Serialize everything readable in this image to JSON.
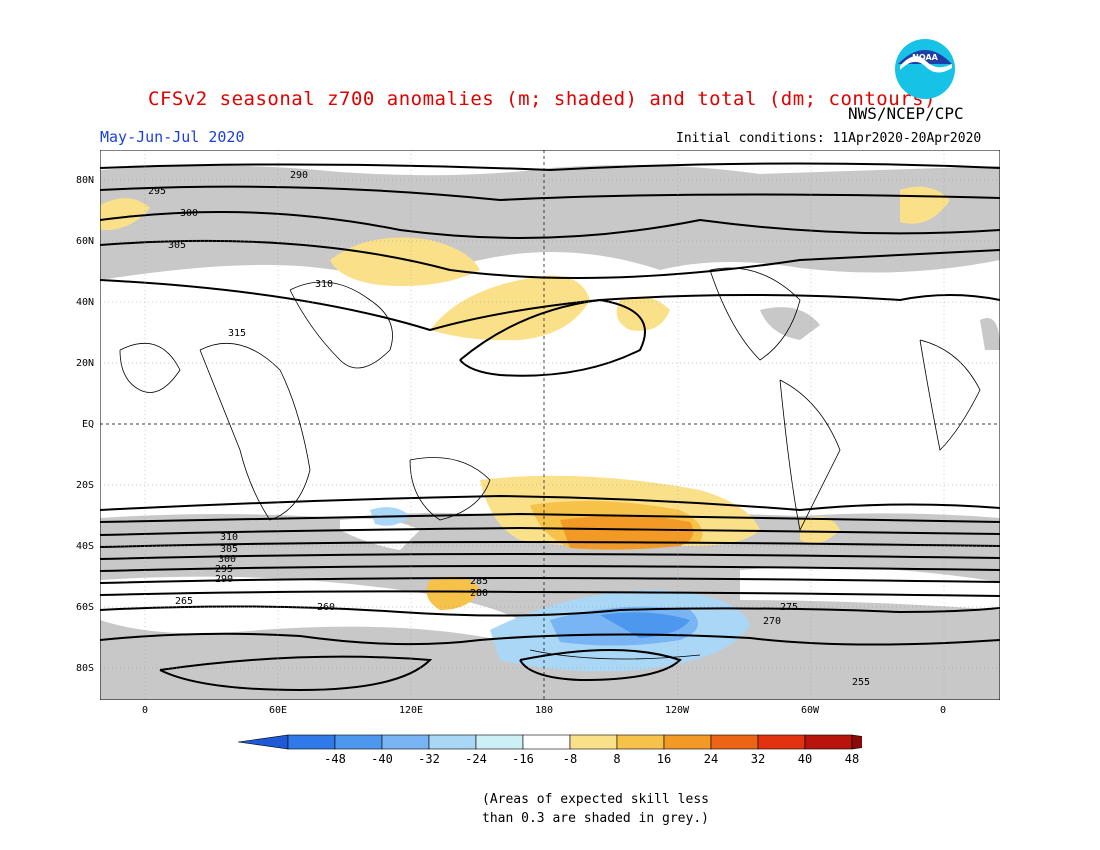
{
  "title": "CFSv2 seasonal z700 anomalies (m; shaded) and total (dm; contours)",
  "agency": "NWS/NCEP/CPC",
  "period": "May-Jun-Jul 2020",
  "initial_conditions": "Initial conditions: 11Apr2020-20Apr2020",
  "logo_text": "NOAA",
  "note_line1": "(Areas of expected skill less",
  "note_line2": "than 0.3 are shaded in grey.)",
  "map": {
    "lat_labels": [
      "80N",
      "60N",
      "40N",
      "20N",
      "EQ",
      "20S",
      "40S",
      "60S",
      "80S"
    ],
    "lon_labels": [
      "0",
      "60E",
      "120E",
      "180",
      "120W",
      "60W",
      "0"
    ],
    "contour_labels": [
      "290",
      "295",
      "300",
      "305",
      "310",
      "315",
      "310",
      "305",
      "300",
      "295",
      "290",
      "285",
      "280",
      "275",
      "270",
      "265",
      "260",
      "255"
    ],
    "colorbar": {
      "ticks": [
        "-48",
        "-40",
        "-32",
        "-24",
        "-16",
        "-8",
        "8",
        "16",
        "24",
        "32",
        "40",
        "48"
      ],
      "colors": [
        "#1f5ad6",
        "#2f7ae8",
        "#4d97ef",
        "#79b5f4",
        "#a9d7f5",
        "#cdf0f7",
        "#ffffff",
        "#fbe08a",
        "#f7c24a",
        "#f39a26",
        "#ee6416",
        "#e2320f",
        "#b8140d",
        "#8a0a0a"
      ]
    }
  }
}
